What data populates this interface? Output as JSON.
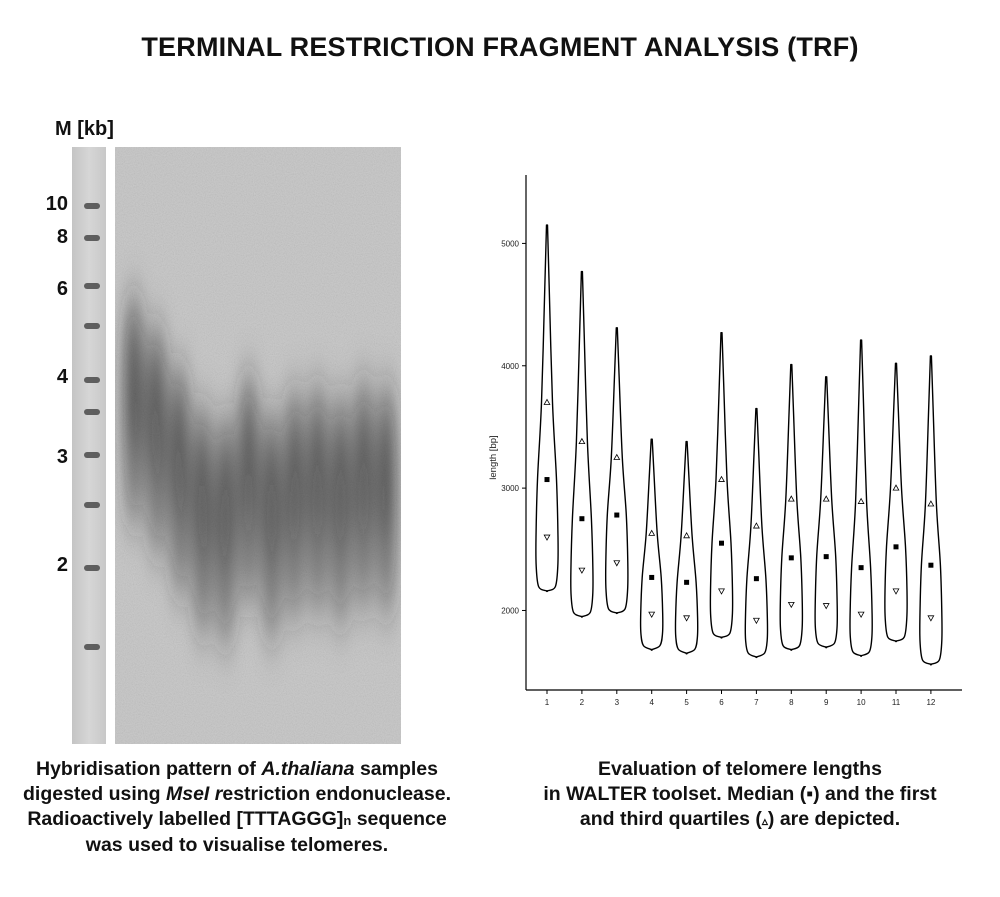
{
  "title": "TERMINAL RESTRICTION FRAGMENT ANALYSIS (TRF)",
  "gel": {
    "marker_label": "M [kb]",
    "marker_sizes": [
      "10",
      "8",
      "6",
      "4",
      "3",
      "2"
    ],
    "lane_count": 12
  },
  "captions": {
    "left": {
      "t1": "Hybridisation pattern of ",
      "t2": "A.thaliana",
      "t3": " samples digested using ",
      "t4": "MseI r",
      "t5": "estriction endonuclease. Radioactively labelled [TTTAGGG]",
      "t6": "n",
      "t7": " sequence was used to visualise telomeres."
    },
    "right": {
      "line1": "Evaluation of telomere lengths",
      "line2": "in WALTER toolset. Median (",
      "median_symbol": "▪",
      "line3": ") and the first",
      "line4": "and third quartiles (",
      "quartile_symbol": "▵",
      "line5": ") are depicted."
    }
  },
  "chart_data": {
    "type": "violin",
    "ylabel": "length [bp]",
    "xlabel": "",
    "yticks": [
      2000,
      3000,
      4000,
      5000
    ],
    "ylim": [
      1350,
      5600
    ],
    "categories": [
      "1",
      "2",
      "3",
      "4",
      "5",
      "6",
      "7",
      "8",
      "9",
      "10",
      "11",
      "12"
    ],
    "violins": [
      {
        "x": "1",
        "min": 2160,
        "max": 5150,
        "q1": 2600,
        "median": 3070,
        "q3": 3700
      },
      {
        "x": "2",
        "min": 1950,
        "max": 4770,
        "q1": 2330,
        "median": 2750,
        "q3": 3380
      },
      {
        "x": "3",
        "min": 1980,
        "max": 4310,
        "q1": 2390,
        "median": 2780,
        "q3": 3250
      },
      {
        "x": "4",
        "min": 1680,
        "max": 3400,
        "q1": 1970,
        "median": 2270,
        "q3": 2630
      },
      {
        "x": "5",
        "min": 1650,
        "max": 3380,
        "q1": 1940,
        "median": 2230,
        "q3": 2610
      },
      {
        "x": "6",
        "min": 1780,
        "max": 4270,
        "q1": 2160,
        "median": 2550,
        "q3": 3070
      },
      {
        "x": "7",
        "min": 1620,
        "max": 3650,
        "q1": 1920,
        "median": 2260,
        "q3": 2690
      },
      {
        "x": "8",
        "min": 1680,
        "max": 4010,
        "q1": 2050,
        "median": 2430,
        "q3": 2910
      },
      {
        "x": "9",
        "min": 1700,
        "max": 3910,
        "q1": 2040,
        "median": 2440,
        "q3": 2910
      },
      {
        "x": "10",
        "min": 1630,
        "max": 4210,
        "q1": 1970,
        "median": 2350,
        "q3": 2890
      },
      {
        "x": "11",
        "min": 1750,
        "max": 4020,
        "q1": 2160,
        "median": 2520,
        "q3": 3000
      },
      {
        "x": "12",
        "min": 1560,
        "max": 4080,
        "q1": 1940,
        "median": 2370,
        "q3": 2870
      }
    ]
  }
}
